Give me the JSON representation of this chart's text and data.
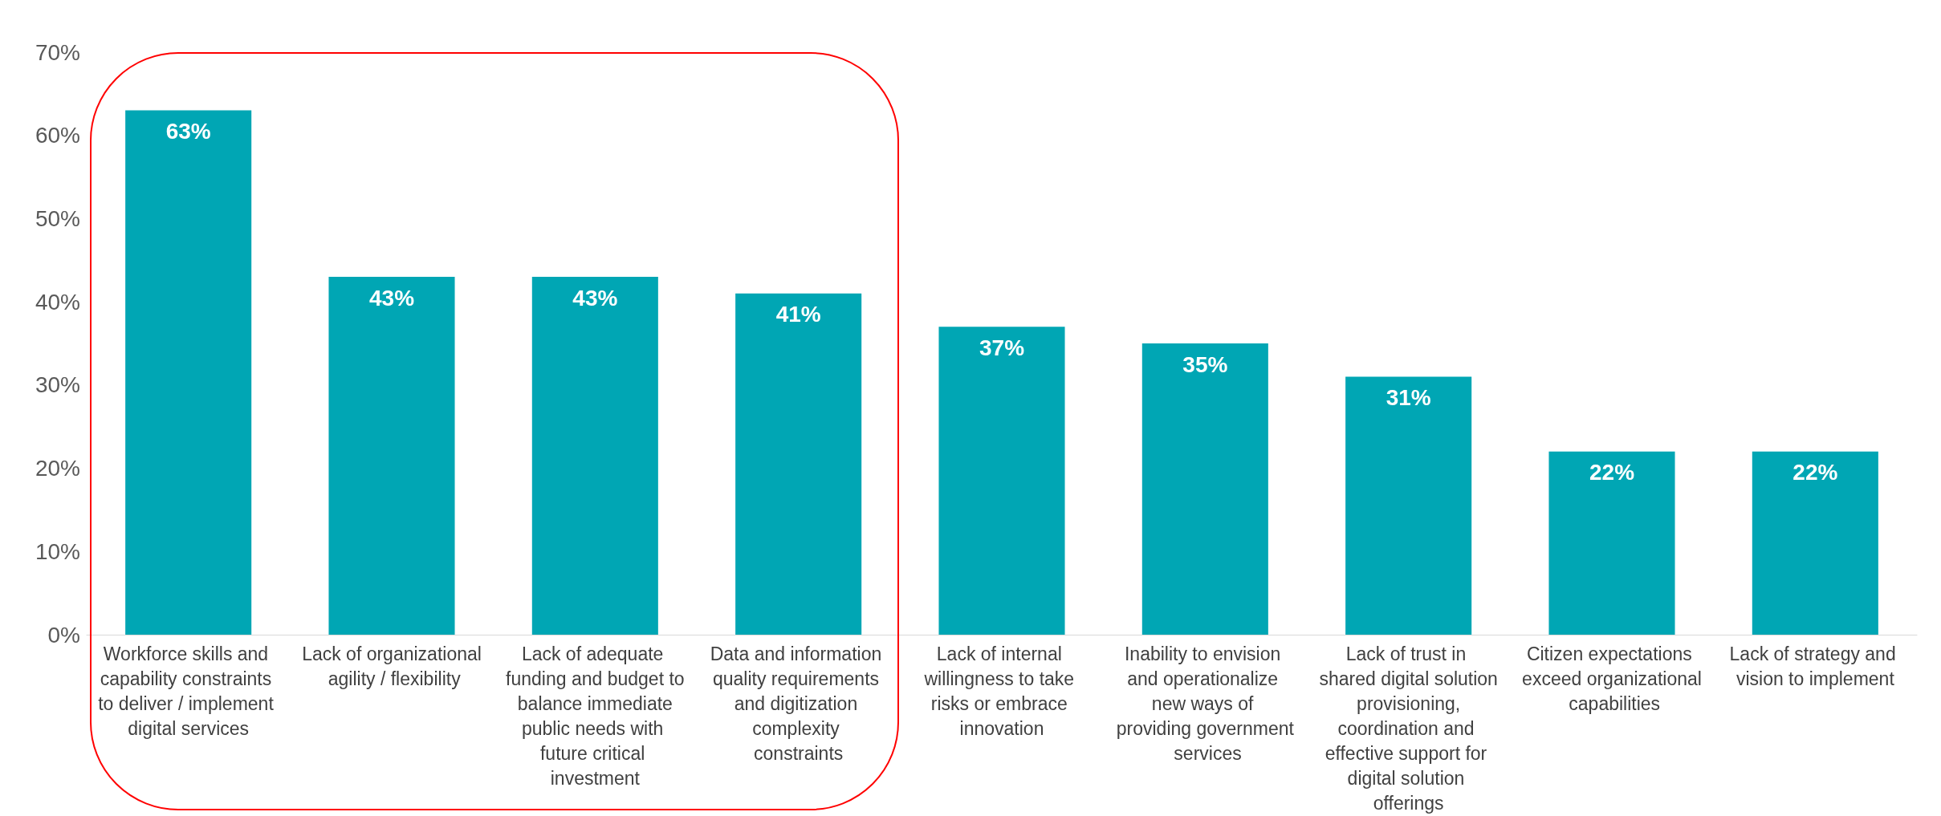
{
  "chart_data": {
    "type": "bar",
    "categories": [
      "Workforce skills and capability constraints to deliver / implement digital services",
      "Lack of organizational agility / flexibility",
      "Lack of adequate funding and budget to balance immediate public needs with future critical investment",
      "Data and information quality requirements and digitization complexity constraints",
      "Lack of internal willingness to take risks or embrace innovation",
      "Inability to envision and operationalize new ways of providing government services",
      "Lack of trust in shared digital solution provisioning, coordination and effective support for digital solution offerings",
      "Citizen expectations exceed organizational capabilities",
      "Lack of strategy and vision to implement"
    ],
    "values": [
      63,
      43,
      43,
      41,
      37,
      35,
      31,
      22,
      22
    ],
    "value_labels": [
      "63%",
      "43%",
      "43%",
      "41%",
      "37%",
      "35%",
      "31%",
      "22%",
      "22%"
    ],
    "color": "#00a6b4",
    "ylim": [
      0,
      70
    ],
    "yticks": [
      {
        "value": 0,
        "label": "0%"
      },
      {
        "value": 10,
        "label": "10%"
      },
      {
        "value": 20,
        "label": "20%"
      },
      {
        "value": 30,
        "label": "30%"
      },
      {
        "value": 40,
        "label": "40%"
      },
      {
        "value": 50,
        "label": "50%"
      },
      {
        "value": 60,
        "label": "60%"
      },
      {
        "value": 70,
        "label": "70%"
      }
    ],
    "grid": false
  }
}
